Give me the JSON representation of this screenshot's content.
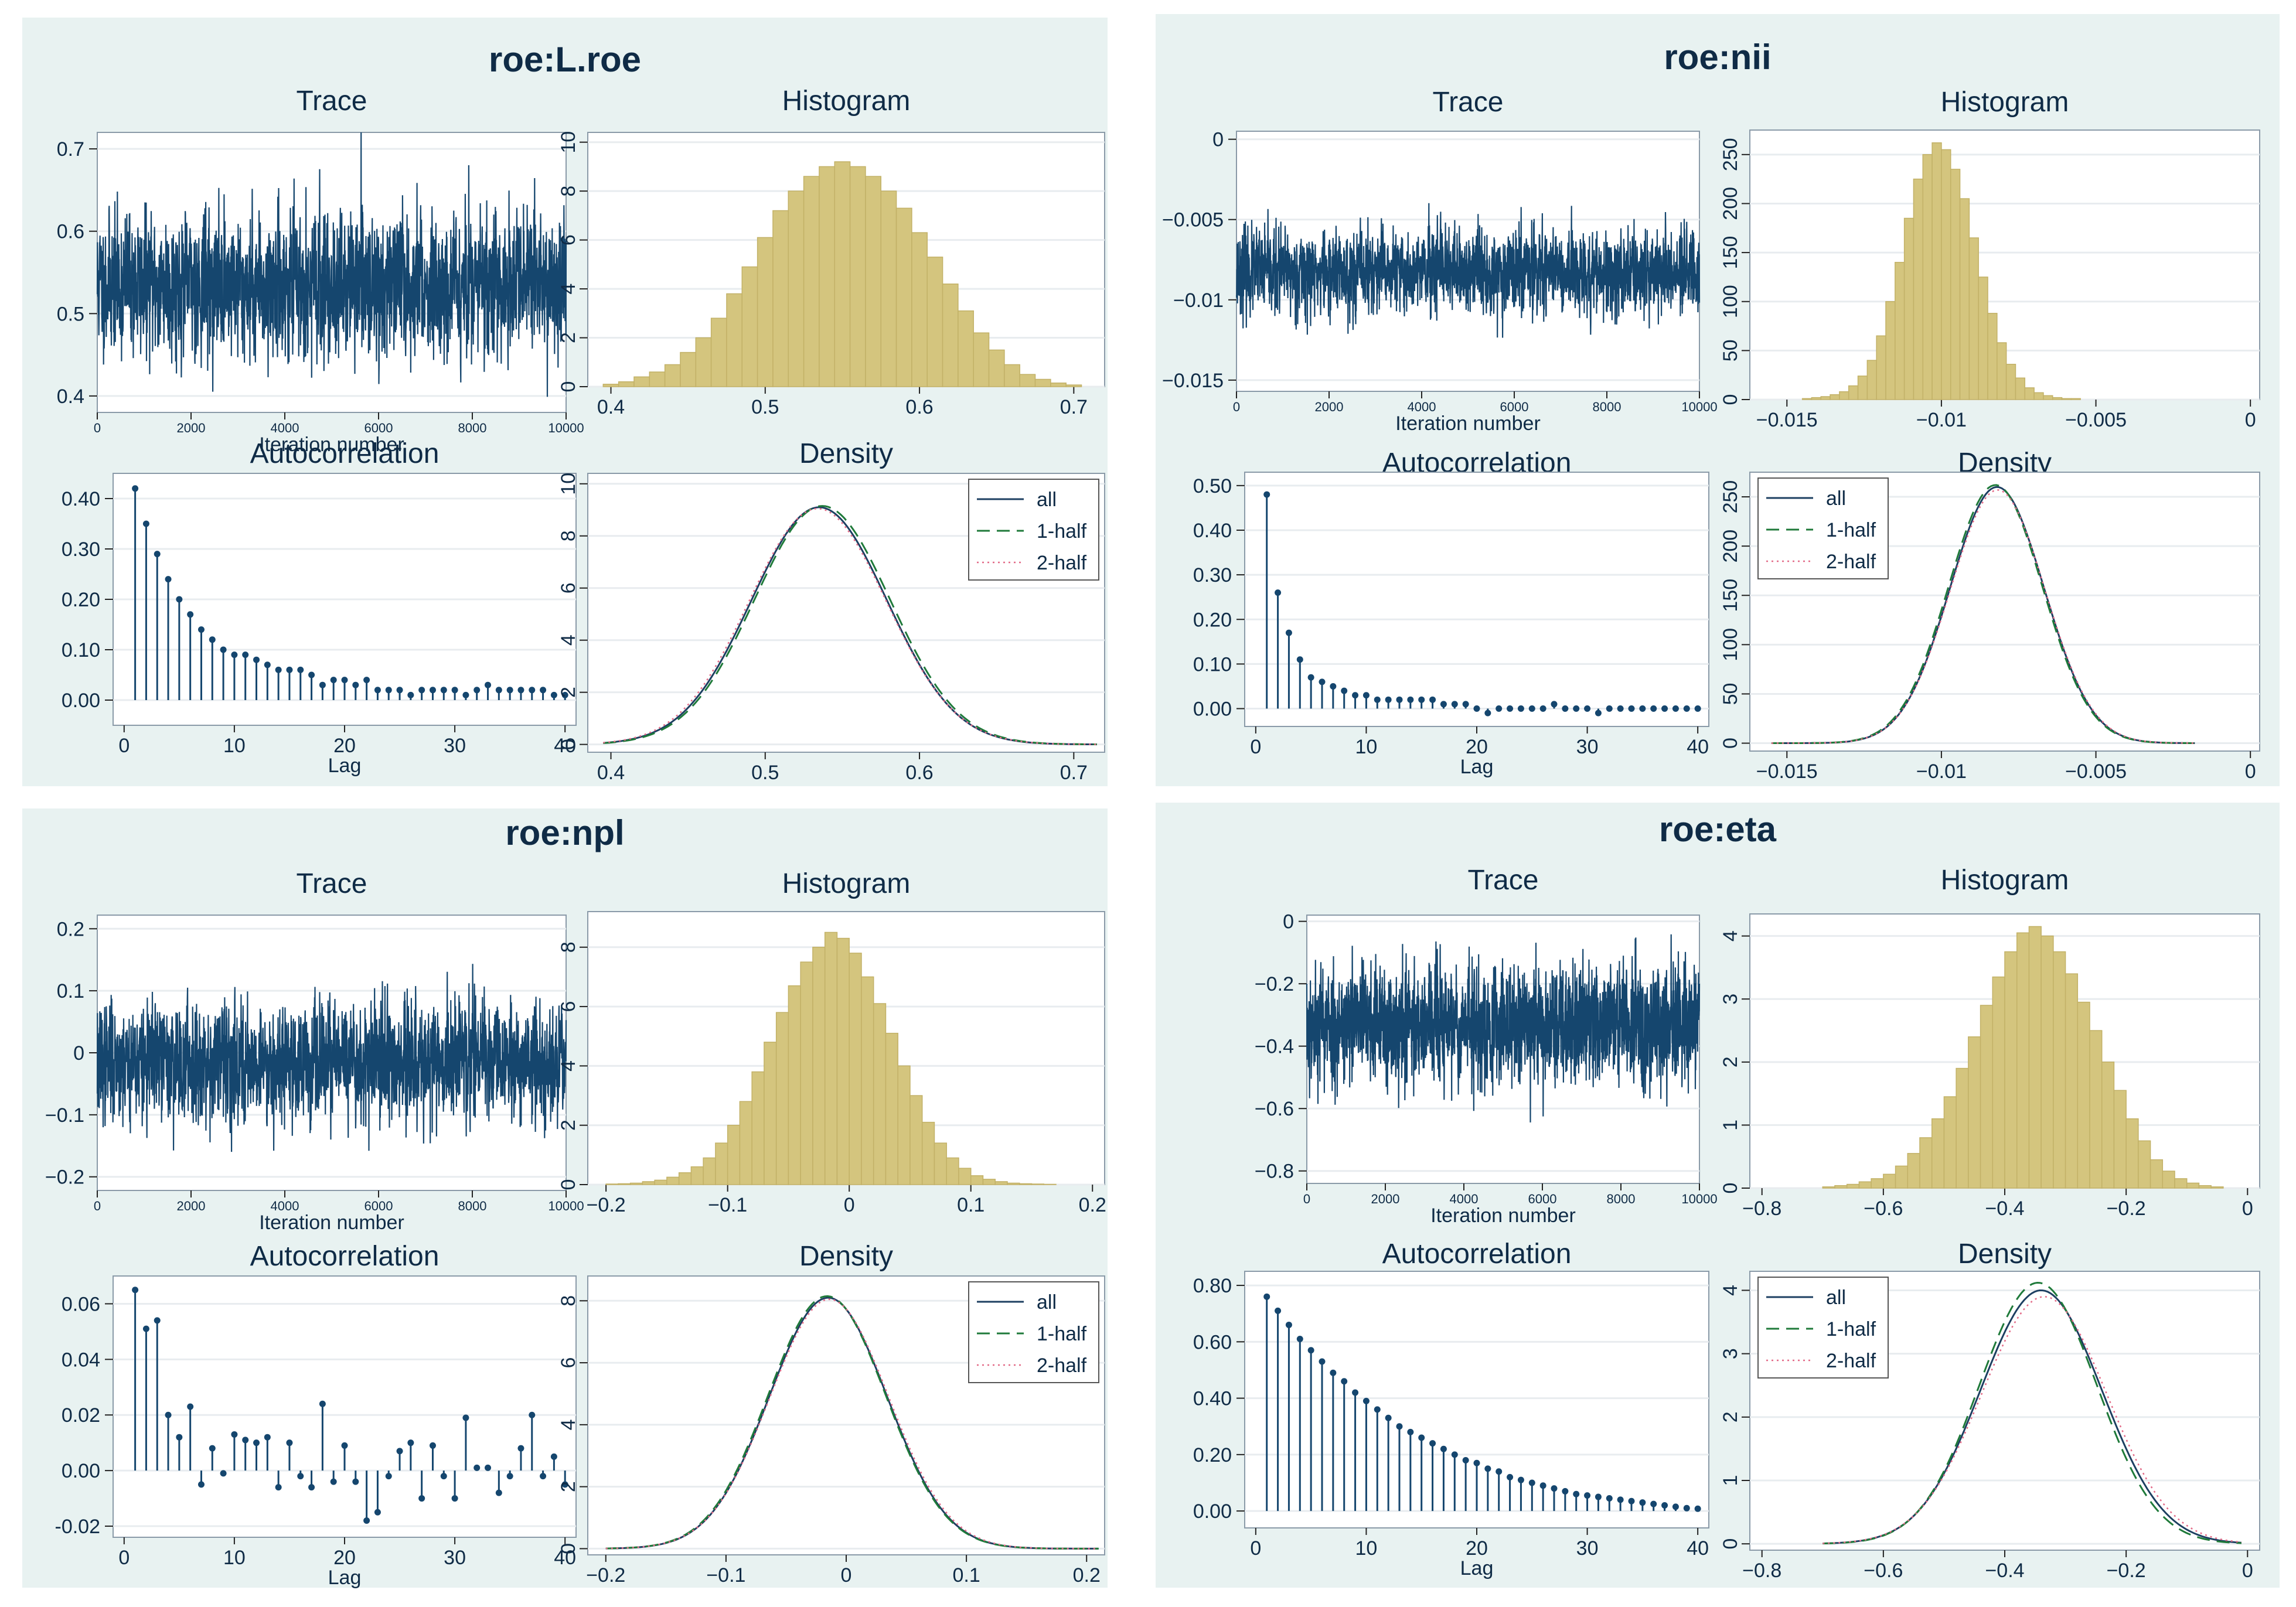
{
  "colors": {
    "panel_bg": "#e8f2f1",
    "plot_bg": "#ffffff",
    "grid": "#e8ecef",
    "text": "#0f2b46",
    "trace": "#15466e",
    "hist_fill": "#d4c57e",
    "hist_stroke": "#c2b167",
    "all_line": "#1d3f61",
    "half1_line": "#1f7a3a",
    "half2_line": "#e36b88"
  },
  "labels": {
    "trace": "Trace",
    "histogram": "Histogram",
    "autocorrelation": "Autocorrelation",
    "density": "Density",
    "iteration": "Iteration number",
    "lag": "Lag",
    "legend": [
      "all",
      "1-half",
      "2-half"
    ]
  },
  "chart_data": [
    {
      "title": "roe:L.roe",
      "trace": {
        "type": "line",
        "mean": 0.535,
        "sd": 0.045,
        "seed": 11,
        "x_range": [
          0,
          10000
        ],
        "ylim": [
          0.38,
          0.72
        ],
        "yticks": [
          0.4,
          0.5,
          0.6,
          0.7
        ],
        "ytick_labels": [
          "0.4",
          "0.5",
          "0.6",
          "0.7"
        ],
        "xticks": [
          0,
          2000,
          4000,
          6000,
          8000,
          10000
        ],
        "xtick_labels": [
          "0",
          "2000",
          "4000",
          "6000",
          "8000",
          "10000"
        ],
        "xlabel": "Iteration number"
      },
      "histogram": {
        "type": "bar",
        "xlim": [
          0.385,
          0.72
        ],
        "ylim": [
          0,
          10.4
        ],
        "yticks": [
          0,
          2,
          4,
          6,
          8,
          10
        ],
        "ytick_labels": [
          "0",
          "2",
          "4",
          "6",
          "8",
          "10"
        ],
        "xticks": [
          0.4,
          0.5,
          0.6,
          0.7
        ],
        "xtick_labels": [
          "0.4",
          "0.5",
          "0.6",
          "0.7"
        ],
        "bin_start": 0.395,
        "bin_width": 0.01,
        "values": [
          0.1,
          0.2,
          0.4,
          0.6,
          0.9,
          1.4,
          2.0,
          2.8,
          3.8,
          4.9,
          6.1,
          7.2,
          8.0,
          8.6,
          9.0,
          9.2,
          9.0,
          8.6,
          8.0,
          7.3,
          6.3,
          5.3,
          4.2,
          3.1,
          2.2,
          1.5,
          0.9,
          0.5,
          0.3,
          0.15,
          0.07
        ]
      },
      "autocorrelation": {
        "type": "stem",
        "ylim": [
          -0.05,
          0.45
        ],
        "xlim": [
          -1,
          41
        ],
        "yticks": [
          0,
          0.1,
          0.2,
          0.3,
          0.4
        ],
        "ytick_labels": [
          "0.00",
          "0.10",
          "0.20",
          "0.30",
          "0.40"
        ],
        "xticks": [
          0,
          10,
          20,
          30,
          40
        ],
        "xtick_labels": [
          "0",
          "10",
          "20",
          "30",
          "40"
        ],
        "xlabel": "Lag",
        "lags": [
          1,
          2,
          3,
          4,
          5,
          6,
          7,
          8,
          9,
          10,
          11,
          12,
          13,
          14,
          15,
          16,
          17,
          18,
          19,
          20,
          21,
          22,
          23,
          24,
          25,
          26,
          27,
          28,
          29,
          30,
          31,
          32,
          33,
          34,
          35,
          36,
          37,
          38,
          39,
          40
        ],
        "values": [
          0.42,
          0.35,
          0.29,
          0.24,
          0.2,
          0.17,
          0.14,
          0.12,
          0.1,
          0.09,
          0.09,
          0.08,
          0.07,
          0.06,
          0.06,
          0.06,
          0.05,
          0.03,
          0.04,
          0.04,
          0.03,
          0.04,
          0.02,
          0.02,
          0.02,
          0.01,
          0.02,
          0.02,
          0.02,
          0.02,
          0.01,
          0.02,
          0.03,
          0.02,
          0.02,
          0.02,
          0.02,
          0.02,
          0.01,
          0.01
        ]
      },
      "density": {
        "type": "line",
        "xlim": [
          0.385,
          0.72
        ],
        "ylim": [
          -0.3,
          10.4
        ],
        "yticks": [
          0,
          2,
          4,
          6,
          8,
          10
        ],
        "ytick_labels": [
          "0",
          "2",
          "4",
          "6",
          "8",
          "10"
        ],
        "xticks": [
          0.4,
          0.5,
          0.6,
          0.7
        ],
        "xtick_labels": [
          "0.4",
          "0.5",
          "0.6",
          "0.7"
        ],
        "mean": 0.535,
        "sd": 0.044,
        "peak": 9.1,
        "x_range": [
          0.395,
          0.715
        ],
        "half1": {
          "mean": 0.537,
          "sd": 0.044,
          "peak": 9.15
        },
        "half2": {
          "mean": 0.534,
          "sd": 0.0445,
          "peak": 9.05
        }
      }
    },
    {
      "title": "roe:nii",
      "trace": {
        "type": "line",
        "mean": -0.0083,
        "sd": 0.0014,
        "seed": 23,
        "x_range": [
          0,
          10000
        ],
        "ylim": [
          -0.0157,
          0.0005
        ],
        "yticks": [
          0,
          -0.005,
          -0.01,
          -0.015
        ],
        "ytick_labels": [
          "0",
          "−0.005",
          "−0.01",
          "−0.015"
        ],
        "xticks": [
          0,
          2000,
          4000,
          6000,
          8000,
          10000
        ],
        "xtick_labels": [
          "0",
          "2000",
          "4000",
          "6000",
          "8000",
          "10000"
        ],
        "xlabel": "Iteration number"
      },
      "histogram": {
        "type": "bar",
        "xlim": [
          -0.0162,
          0.0003
        ],
        "ylim": [
          0,
          275
        ],
        "yticks": [
          0,
          50,
          100,
          150,
          200,
          250
        ],
        "ytick_labels": [
          "0",
          "50",
          "100",
          "150",
          "200",
          "250"
        ],
        "xticks": [
          -0.015,
          -0.01,
          -0.005,
          0
        ],
        "xtick_labels": [
          "−0.015",
          "−0.01",
          "−0.005",
          "0"
        ],
        "bin_start": -0.0145,
        "bin_width": 0.0003,
        "values": [
          1,
          2,
          3,
          5,
          8,
          14,
          24,
          40,
          65,
          100,
          140,
          185,
          225,
          250,
          262,
          255,
          235,
          205,
          165,
          125,
          88,
          58,
          36,
          22,
          12,
          7,
          4,
          2,
          1,
          1
        ]
      },
      "autocorrelation": {
        "type": "stem",
        "ylim": [
          -0.04,
          0.53
        ],
        "xlim": [
          -1,
          41
        ],
        "yticks": [
          0,
          0.1,
          0.2,
          0.3,
          0.4,
          0.5
        ],
        "ytick_labels": [
          "0.00",
          "0.10",
          "0.20",
          "0.30",
          "0.40",
          "0.50"
        ],
        "xticks": [
          0,
          10,
          20,
          30,
          40
        ],
        "xtick_labels": [
          "0",
          "10",
          "20",
          "30",
          "40"
        ],
        "xlabel": "Lag",
        "lags": [
          1,
          2,
          3,
          4,
          5,
          6,
          7,
          8,
          9,
          10,
          11,
          12,
          13,
          14,
          15,
          16,
          17,
          18,
          19,
          20,
          21,
          22,
          23,
          24,
          25,
          26,
          27,
          28,
          29,
          30,
          31,
          32,
          33,
          34,
          35,
          36,
          37,
          38,
          39,
          40
        ],
        "values": [
          0.48,
          0.26,
          0.17,
          0.11,
          0.07,
          0.06,
          0.05,
          0.04,
          0.03,
          0.03,
          0.02,
          0.02,
          0.02,
          0.02,
          0.02,
          0.02,
          0.01,
          0.01,
          0.01,
          0.0,
          -0.01,
          0.0,
          0.0,
          0.0,
          0.0,
          0.0,
          0.01,
          0.0,
          0.0,
          0.0,
          -0.01,
          0.0,
          0.0,
          0.0,
          0.0,
          0.0,
          0.0,
          0.0,
          0.0,
          0.0
        ]
      },
      "density": {
        "type": "line",
        "xlim": [
          -0.0162,
          0.0003
        ],
        "ylim": [
          -8,
          275
        ],
        "yticks": [
          0,
          50,
          100,
          150,
          200,
          250
        ],
        "ytick_labels": [
          "0",
          "50",
          "100",
          "150",
          "200",
          "250"
        ],
        "xticks": [
          -0.015,
          -0.01,
          -0.005,
          0
        ],
        "xtick_labels": [
          "−0.015",
          "−0.01",
          "−0.005",
          "0"
        ],
        "mean": -0.0082,
        "sd": 0.00152,
        "peak": 260,
        "x_range": [
          -0.0155,
          -0.0018
        ],
        "half1": {
          "mean": -0.00825,
          "sd": 0.00152,
          "peak": 262
        },
        "half2": {
          "mean": -0.00818,
          "sd": 0.00153,
          "peak": 257
        }
      }
    },
    {
      "title": "roe:npl",
      "trace": {
        "type": "line",
        "mean": -0.015,
        "sd": 0.05,
        "seed": 37,
        "x_range": [
          0,
          10000
        ],
        "ylim": [
          -0.222,
          0.222
        ],
        "yticks": [
          -0.2,
          -0.1,
          0,
          0.1,
          0.2
        ],
        "ytick_labels": [
          "−0.2",
          "−0.1",
          "0",
          "0.1",
          "0.2"
        ],
        "xticks": [
          0,
          2000,
          4000,
          6000,
          8000,
          10000
        ],
        "xtick_labels": [
          "0",
          "2000",
          "4000",
          "6000",
          "8000",
          "10000"
        ],
        "xlabel": "Iteration number"
      },
      "histogram": {
        "type": "bar",
        "xlim": [
          -0.215,
          0.21
        ],
        "ylim": [
          0,
          9.2
        ],
        "yticks": [
          0,
          2,
          4,
          6,
          8
        ],
        "ytick_labels": [
          "0",
          "2",
          "4",
          "6",
          "8"
        ],
        "xticks": [
          -0.2,
          -0.1,
          0,
          0.1,
          0.2
        ],
        "xtick_labels": [
          "−0.2",
          "−0.1",
          "0",
          "0.1",
          "0.2"
        ],
        "bin_start": -0.2,
        "bin_width": 0.01,
        "values": [
          0.02,
          0.03,
          0.05,
          0.1,
          0.15,
          0.25,
          0.4,
          0.6,
          0.9,
          1.4,
          2.0,
          2.8,
          3.8,
          4.8,
          5.8,
          6.7,
          7.5,
          8.0,
          8.5,
          8.3,
          7.8,
          7.0,
          6.1,
          5.1,
          4.0,
          3.0,
          2.1,
          1.4,
          0.9,
          0.55,
          0.3,
          0.18,
          0.1,
          0.05,
          0.03,
          0.02,
          0.01
        ]
      },
      "autocorrelation": {
        "type": "stem",
        "ylim": [
          -0.024,
          0.07
        ],
        "xlim": [
          -1,
          41
        ],
        "yticks": [
          -0.02,
          0,
          0.02,
          0.04,
          0.06
        ],
        "ytick_labels": [
          "-0.02",
          "0.00",
          "0.02",
          "0.04",
          "0.06"
        ],
        "xticks": [
          0,
          10,
          20,
          30,
          40
        ],
        "xtick_labels": [
          "0",
          "10",
          "20",
          "30",
          "40"
        ],
        "xlabel": "Lag",
        "lags": [
          1,
          2,
          3,
          4,
          5,
          6,
          7,
          8,
          9,
          10,
          11,
          12,
          13,
          14,
          15,
          16,
          17,
          18,
          19,
          20,
          21,
          22,
          23,
          24,
          25,
          26,
          27,
          28,
          29,
          30,
          31,
          32,
          33,
          34,
          35,
          36,
          37,
          38,
          39,
          40
        ],
        "values": [
          0.065,
          0.051,
          0.054,
          0.02,
          0.012,
          0.023,
          -0.005,
          0.008,
          -0.001,
          0.013,
          0.011,
          0.01,
          0.012,
          -0.006,
          0.01,
          -0.002,
          -0.006,
          0.024,
          -0.004,
          0.009,
          -0.004,
          -0.018,
          -0.015,
          -0.002,
          0.007,
          0.01,
          -0.01,
          0.009,
          -0.002,
          -0.01,
          0.019,
          0.001,
          0.001,
          -0.008,
          -0.002,
          0.008,
          0.02,
          -0.002,
          0.005,
          -0.005
        ]
      },
      "density": {
        "type": "line",
        "xlim": [
          -0.215,
          0.215
        ],
        "ylim": [
          -0.2,
          8.8
        ],
        "yticks": [
          0,
          2,
          4,
          6,
          8
        ],
        "ytick_labels": [
          "0",
          "2",
          "4",
          "6",
          "8"
        ],
        "xticks": [
          -0.2,
          -0.1,
          0,
          0.1,
          0.2
        ],
        "xtick_labels": [
          "−0.2",
          "−0.1",
          "0",
          "0.1",
          "0.2"
        ],
        "mean": -0.015,
        "sd": 0.049,
        "peak": 8.1,
        "x_range": [
          -0.2,
          0.21
        ],
        "half1": {
          "mean": -0.016,
          "sd": 0.049,
          "peak": 8.15
        },
        "half2": {
          "mean": -0.014,
          "sd": 0.0495,
          "peak": 8.05
        }
      }
    },
    {
      "title": "roe:eta",
      "trace": {
        "type": "line",
        "mean": -0.33,
        "sd": 0.1,
        "seed": 53,
        "x_range": [
          0,
          10000
        ],
        "ylim": [
          -0.84,
          0.02
        ],
        "yticks": [
          0,
          -0.2,
          -0.4,
          -0.6,
          -0.8
        ],
        "ytick_labels": [
          "0",
          "−0.2",
          "−0.4",
          "−0.6",
          "−0.8"
        ],
        "xticks": [
          0,
          2000,
          4000,
          6000,
          8000,
          10000
        ],
        "xtick_labels": [
          "0",
          "2000",
          "4000",
          "6000",
          "8000",
          "10000"
        ],
        "xlabel": "Iteration number"
      },
      "histogram": {
        "type": "bar",
        "xlim": [
          -0.82,
          0.02
        ],
        "ylim": [
          0,
          4.35
        ],
        "yticks": [
          0,
          1,
          2,
          3,
          4
        ],
        "ytick_labels": [
          "0",
          "1",
          "2",
          "3",
          "4"
        ],
        "xticks": [
          -0.8,
          -0.6,
          -0.4,
          -0.2,
          0
        ],
        "xtick_labels": [
          "−0.8",
          "−0.6",
          "−0.4",
          "−0.2",
          "0"
        ],
        "bin_start": -0.7,
        "bin_width": 0.02,
        "values": [
          0.02,
          0.04,
          0.06,
          0.1,
          0.15,
          0.22,
          0.35,
          0.55,
          0.8,
          1.1,
          1.45,
          1.9,
          2.4,
          2.9,
          3.35,
          3.75,
          4.05,
          4.15,
          4.0,
          3.75,
          3.4,
          2.95,
          2.5,
          2.0,
          1.55,
          1.1,
          0.75,
          0.45,
          0.27,
          0.15,
          0.08,
          0.04,
          0.02
        ]
      },
      "autocorrelation": {
        "type": "stem",
        "ylim": [
          -0.06,
          0.85
        ],
        "xlim": [
          -1,
          41
        ],
        "yticks": [
          0,
          0.2,
          0.4,
          0.6,
          0.8
        ],
        "ytick_labels": [
          "0.00",
          "0.20",
          "0.40",
          "0.60",
          "0.80"
        ],
        "xticks": [
          0,
          10,
          20,
          30,
          40
        ],
        "xtick_labels": [
          "0",
          "10",
          "20",
          "30",
          "40"
        ],
        "xlabel": "Lag",
        "lags": [
          1,
          2,
          3,
          4,
          5,
          6,
          7,
          8,
          9,
          10,
          11,
          12,
          13,
          14,
          15,
          16,
          17,
          18,
          19,
          20,
          21,
          22,
          23,
          24,
          25,
          26,
          27,
          28,
          29,
          30,
          31,
          32,
          33,
          34,
          35,
          36,
          37,
          38,
          39,
          40
        ],
        "values": [
          0.76,
          0.71,
          0.66,
          0.61,
          0.57,
          0.53,
          0.49,
          0.46,
          0.42,
          0.39,
          0.36,
          0.33,
          0.3,
          0.28,
          0.26,
          0.24,
          0.22,
          0.2,
          0.18,
          0.17,
          0.15,
          0.14,
          0.12,
          0.11,
          0.1,
          0.09,
          0.08,
          0.07,
          0.06,
          0.055,
          0.05,
          0.045,
          0.04,
          0.035,
          0.03,
          0.025,
          0.02,
          0.015,
          0.01,
          0.008
        ]
      },
      "density": {
        "type": "line",
        "xlim": [
          -0.82,
          0.02
        ],
        "ylim": [
          -0.1,
          4.3
        ],
        "yticks": [
          0,
          1,
          2,
          3,
          4
        ],
        "ytick_labels": [
          "0",
          "1",
          "2",
          "3",
          "4"
        ],
        "xticks": [
          -0.8,
          -0.6,
          -0.4,
          -0.2,
          0
        ],
        "xtick_labels": [
          "−0.8",
          "−0.6",
          "−0.4",
          "−0.2",
          "0"
        ],
        "mean": -0.34,
        "sd": 0.1,
        "peak": 4.0,
        "x_range": [
          -0.7,
          -0.01
        ],
        "half1": {
          "mean": -0.345,
          "sd": 0.097,
          "peak": 4.12
        },
        "half2": {
          "mean": -0.335,
          "sd": 0.103,
          "peak": 3.9
        }
      }
    }
  ]
}
